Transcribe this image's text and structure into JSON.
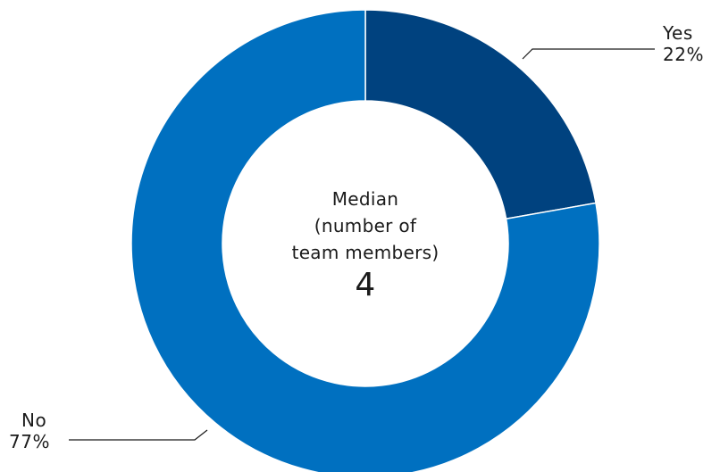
{
  "chart_data": {
    "type": "pie",
    "style": "donut",
    "slices": [
      {
        "label": "Yes",
        "value": 22,
        "value_label": "22%",
        "color": "#00427f"
      },
      {
        "label": "No",
        "value": 77,
        "value_label": "77%",
        "color": "#0070c0"
      }
    ],
    "center": {
      "lines": [
        "Median",
        "(number of",
        "team members)"
      ],
      "value": "4"
    }
  }
}
